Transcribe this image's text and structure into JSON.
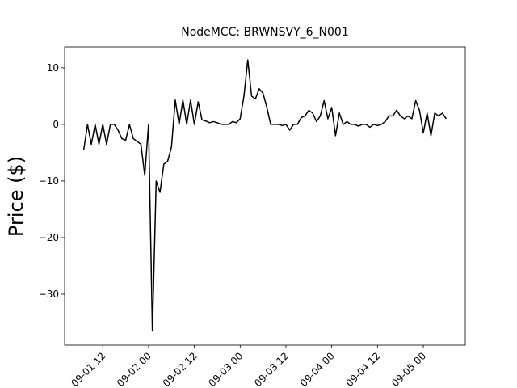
{
  "chart_data": {
    "type": "line",
    "title": "NodeMCC: BRWNSVY_6_N001",
    "y_label": "Price ($)",
    "x": [
      "09-01 07",
      "09-01 08",
      "09-01 09",
      "09-01 10",
      "09-01 11",
      "09-01 12",
      "09-01 13",
      "09-01 14",
      "09-01 15",
      "09-01 16",
      "09-01 17",
      "09-01 18",
      "09-01 19",
      "09-01 20",
      "09-01 21",
      "09-01 22",
      "09-01 23",
      "09-02 00",
      "09-02 01",
      "09-02 02",
      "09-02 03",
      "09-02 04",
      "09-02 05",
      "09-02 06",
      "09-02 07",
      "09-02 08",
      "09-02 09",
      "09-02 10",
      "09-02 11",
      "09-02 12",
      "09-02 13",
      "09-02 14",
      "09-02 15",
      "09-02 16",
      "09-02 17",
      "09-02 18",
      "09-02 19",
      "09-02 20",
      "09-02 21",
      "09-02 22",
      "09-02 23",
      "09-03 00",
      "09-03 01",
      "09-03 02",
      "09-03 03",
      "09-03 04",
      "09-03 05",
      "09-03 06",
      "09-03 07",
      "09-03 08",
      "09-03 09",
      "09-03 10",
      "09-03 11",
      "09-03 12",
      "09-03 13",
      "09-03 14",
      "09-03 15",
      "09-03 16",
      "09-03 17",
      "09-03 18",
      "09-03 19",
      "09-03 20",
      "09-03 21",
      "09-03 22",
      "09-03 23",
      "09-04 00",
      "09-04 01",
      "09-04 02",
      "09-04 03",
      "09-04 04",
      "09-04 05",
      "09-04 06",
      "09-04 07",
      "09-04 08",
      "09-04 09",
      "09-04 10",
      "09-04 11",
      "09-04 12",
      "09-04 13",
      "09-04 14",
      "09-04 15",
      "09-04 16",
      "09-04 17",
      "09-04 18",
      "09-04 19",
      "09-04 20",
      "09-04 21",
      "09-04 22",
      "09-04 23",
      "09-05 00",
      "09-05 01",
      "09-05 02",
      "09-05 03",
      "09-05 04",
      "09-05 05",
      "09-05 06"
    ],
    "series": [
      {
        "color": "#000000",
        "values": [
          -4.5,
          0,
          -3.5,
          0,
          -3.5,
          0,
          -3.5,
          0,
          0,
          -1,
          -2.5,
          -2.8,
          0,
          -2.5,
          -3,
          -3.5,
          -9,
          0,
          -36.5,
          -10,
          -12,
          -7,
          -6.5,
          -4,
          4.3,
          0,
          4.3,
          0,
          4.3,
          0,
          4,
          0.8,
          0.6,
          0.3,
          0.5,
          0.3,
          0,
          0,
          0,
          0.5,
          0.3,
          1,
          5,
          11.4,
          5,
          4.5,
          6.3,
          5.5,
          3,
          0,
          0,
          0,
          -0.2,
          0,
          -1,
          0,
          0,
          1.2,
          1.5,
          2.5,
          2,
          0.5,
          1.5,
          4.2,
          1,
          3,
          -2,
          2,
          0,
          0.5,
          0,
          0,
          -0.3,
          0,
          0,
          -0.5,
          0,
          -0.2,
          0,
          0.5,
          1.5,
          1.5,
          2.5,
          1.5,
          1,
          1.5,
          1,
          4.2,
          2.5,
          -1.5,
          2,
          -2,
          2,
          1.5,
          2,
          1
        ]
      }
    ],
    "xlim": [
      "09-01 02",
      "09-05 11"
    ],
    "xticks": [
      "09-01 12",
      "09-02 00",
      "09-02 12",
      "09-03 00",
      "09-03 12",
      "09-04 00",
      "09-04 12",
      "09-05 00"
    ],
    "ylim": [
      -39,
      13.7
    ],
    "yticks": [
      {
        "value": -30,
        "label": "−30"
      },
      {
        "value": -20,
        "label": "−20"
      },
      {
        "value": -10,
        "label": "−10"
      },
      0,
      10
    ]
  }
}
